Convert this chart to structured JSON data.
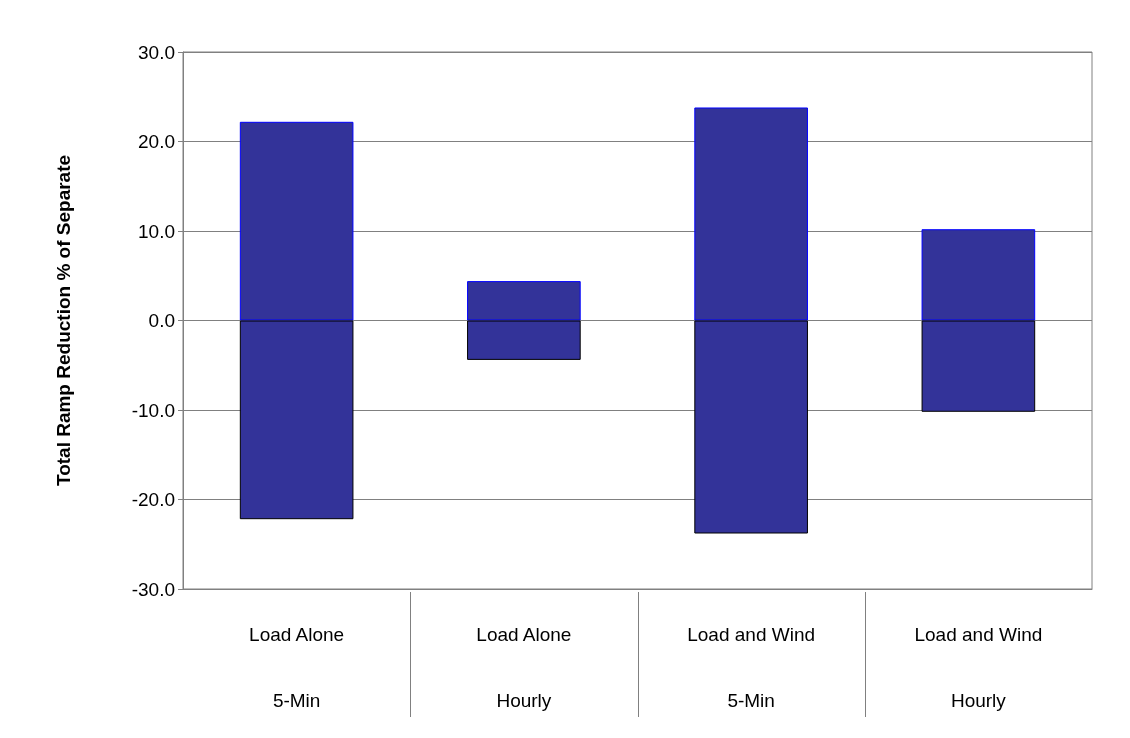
{
  "chart_data": {
    "type": "bar",
    "ylabel": "Total Ramp Reduction % of Separate",
    "categories": [
      "Load Alone\n5-Min",
      "Load Alone\nHourly",
      "Load and Wind\n5-Min",
      "Load and Wind\nHourly"
    ],
    "stacked": true,
    "series": [
      {
        "color": "#333399",
        "values": [
          22.2,
          4.4,
          23.8,
          10.2
        ]
      },
      {
        "color": "#333399",
        "values": [
          -22.2,
          -4.4,
          -23.8,
          -10.2
        ]
      }
    ],
    "ylim": [
      -30,
      30
    ],
    "yticks": [
      {
        "value": -30,
        "label": "-30.0"
      },
      {
        "value": -20,
        "label": "-20.0"
      },
      {
        "value": -10,
        "label": "-10.0"
      },
      {
        "value": 0,
        "label": "0.0"
      },
      {
        "value": 10,
        "label": "10.0"
      },
      {
        "value": 20,
        "label": "20.0"
      },
      {
        "value": 30,
        "label": "30.0"
      }
    ],
    "grid": "y"
  }
}
